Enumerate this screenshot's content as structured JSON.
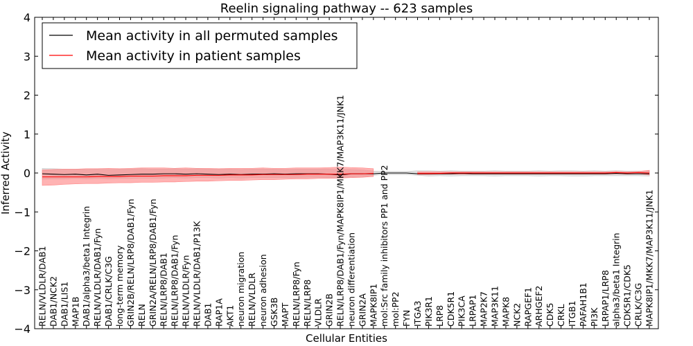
{
  "chart_data": {
    "type": "line",
    "title": "Reelin signaling pathway -- 623 samples",
    "xlabel": "Cellular Entities",
    "ylabel": "Inferred Activity",
    "ylim": [
      -4,
      4
    ],
    "yticks": [
      -4,
      -3,
      -2,
      -1,
      0,
      1,
      2,
      3,
      4
    ],
    "ytick_labels": [
      "−4",
      "−3",
      "−2",
      "−1",
      "0",
      "1",
      "2",
      "3",
      "4"
    ],
    "legend_position": "top-left",
    "categories": [
      "RELN/VLDLR/DAB1",
      "DAB1/NCK2",
      "DAB1/LIS1",
      "MAP1B",
      "DAB1/alpha3/beta1 Integrin",
      "RELN/VLDLR/DAB1/Fyn",
      "DAB1/CRLK/C3G",
      "long-term memory",
      "GRIN2B/RELN/LRP8/DAB1/Fyn",
      "RELN",
      "GRIN2A/RELN/LRP8/DAB1/Fyn",
      "RELN/LRP8/DAB1",
      "RELN/LRP8/DAB1/Fyn",
      "RELN/VLDLR/Fyn",
      "RELN/VLDLR/DAB1/P13K",
      "DAB1",
      "RAP1A",
      "AKT1",
      "neuron migration",
      "RELN/VLDLR",
      "neuron adhesion",
      "GSK3B",
      "MAPT",
      "RELN/LRP8/Fyn",
      "RELN/LRP8",
      "VLDLR",
      "GRIN2B",
      "RELN/LRP8/DAB1/Fyn/MAPK8IP1/MKK7/MAP3K11/JNK1",
      "neuron differentiation",
      "GRIN2A",
      "MAPK8IP1",
      "mol:Src family inhibitors PP1 and PP2",
      "mol:PP2",
      "FYN",
      "ITGA3",
      "PIK3R1",
      "LRP8",
      "CDK5R1",
      "PIK3CA",
      "LRPAP1",
      "MAP2K7",
      "MAP3K11",
      "MAPK8",
      "NCK2",
      "RAPGEF1",
      "ARHGEF2",
      "CDK5",
      "CRKL",
      "ITGB1",
      "PAFAH1B1",
      "PI3K",
      "LRPAP1/LRP8",
      "alpha3/beta1 Integrin",
      "CDK5R1/CDK5",
      "CRLK/C3G",
      "MAPK8IP1/MKK7/MAP3K11/JNK1"
    ],
    "series": [
      {
        "name": "Mean activity in all permuted samples",
        "color": "#000000",
        "band_color": "#c8c8c8",
        "values": [
          -0.02,
          -0.03,
          -0.04,
          -0.03,
          -0.05,
          -0.03,
          -0.06,
          -0.05,
          -0.04,
          -0.03,
          -0.03,
          -0.02,
          -0.02,
          -0.03,
          -0.02,
          -0.03,
          -0.04,
          -0.03,
          -0.04,
          -0.03,
          -0.03,
          -0.02,
          -0.03,
          -0.02,
          -0.02,
          -0.02,
          -0.03,
          -0.05,
          -0.02,
          -0.02,
          -0.02,
          0.0,
          0.0,
          0.0,
          -0.02,
          -0.02,
          -0.02,
          -0.02,
          -0.01,
          -0.02,
          -0.02,
          -0.02,
          -0.02,
          -0.02,
          -0.02,
          -0.02,
          -0.02,
          -0.02,
          -0.02,
          -0.02,
          -0.02,
          -0.02,
          -0.01,
          -0.02,
          -0.02,
          -0.02
        ],
        "band_low": [
          -0.16,
          -0.15,
          -0.15,
          -0.14,
          -0.15,
          -0.14,
          -0.15,
          -0.14,
          -0.14,
          -0.13,
          -0.13,
          -0.13,
          -0.12,
          -0.13,
          -0.12,
          -0.12,
          -0.13,
          -0.12,
          -0.13,
          -0.12,
          -0.12,
          -0.12,
          -0.12,
          -0.12,
          -0.11,
          -0.11,
          -0.12,
          -0.13,
          -0.1,
          -0.09,
          -0.06,
          -0.04,
          -0.04,
          -0.04,
          -0.06,
          -0.08,
          -0.07,
          -0.08,
          -0.07,
          -0.07,
          -0.07,
          -0.08,
          -0.07,
          -0.07,
          -0.07,
          -0.08,
          -0.07,
          -0.07,
          -0.08,
          -0.08,
          -0.07,
          -0.07,
          -0.07,
          -0.07,
          -0.07,
          -0.08
        ],
        "band_high": [
          0.12,
          0.11,
          0.1,
          0.1,
          0.09,
          0.1,
          0.09,
          0.1,
          0.1,
          0.11,
          0.1,
          0.1,
          0.11,
          0.1,
          0.11,
          0.1,
          0.1,
          0.1,
          0.09,
          0.1,
          0.1,
          0.1,
          0.09,
          0.1,
          0.1,
          0.1,
          0.1,
          0.09,
          0.09,
          0.08,
          0.05,
          0.04,
          0.04,
          0.04,
          0.06,
          0.06,
          0.05,
          0.06,
          0.05,
          0.05,
          0.05,
          0.06,
          0.05,
          0.05,
          0.05,
          0.06,
          0.05,
          0.06,
          0.06,
          0.05,
          0.06,
          0.05,
          0.06,
          0.05,
          0.05,
          0.05
        ]
      },
      {
        "name": "Mean activity in patient samples",
        "color": "#ff0000",
        "band_color": "#ff8080",
        "values": [
          -0.1,
          -0.1,
          -0.1,
          -0.1,
          -0.1,
          -0.09,
          -0.09,
          -0.09,
          -0.08,
          -0.08,
          -0.08,
          -0.07,
          -0.07,
          -0.07,
          -0.06,
          -0.06,
          -0.06,
          -0.05,
          -0.05,
          -0.05,
          -0.04,
          -0.04,
          -0.04,
          -0.04,
          -0.03,
          -0.03,
          -0.03,
          -0.03,
          -0.02,
          -0.02,
          -0.01,
          null,
          null,
          null,
          -0.01,
          -0.01,
          -0.01,
          0.0,
          0.0,
          0.0,
          0.0,
          0.0,
          0.0,
          0.0,
          0.0,
          0.0,
          0.0,
          0.0,
          0.0,
          0.0,
          0.0,
          0.0,
          0.01,
          0.0,
          0.01,
          0.0
        ],
        "band_low": [
          -0.32,
          -0.31,
          -0.29,
          -0.28,
          -0.27,
          -0.27,
          -0.26,
          -0.25,
          -0.25,
          -0.24,
          -0.24,
          -0.23,
          -0.23,
          -0.22,
          -0.21,
          -0.21,
          -0.2,
          -0.19,
          -0.19,
          -0.18,
          -0.17,
          -0.17,
          -0.16,
          -0.15,
          -0.15,
          -0.14,
          -0.14,
          -0.13,
          -0.12,
          -0.11,
          -0.09,
          null,
          null,
          null,
          -0.04,
          -0.04,
          -0.03,
          -0.03,
          -0.03,
          -0.03,
          -0.03,
          -0.03,
          -0.03,
          -0.03,
          -0.03,
          -0.03,
          -0.03,
          -0.03,
          -0.03,
          -0.03,
          -0.03,
          -0.03,
          -0.02,
          -0.03,
          -0.02,
          -0.05
        ],
        "band_high": [
          0.08,
          0.09,
          0.1,
          0.1,
          0.11,
          0.11,
          0.12,
          0.11,
          0.12,
          0.13,
          0.13,
          0.13,
          0.12,
          0.13,
          0.12,
          0.12,
          0.11,
          0.12,
          0.12,
          0.12,
          0.13,
          0.12,
          0.12,
          0.13,
          0.13,
          0.13,
          0.14,
          0.15,
          0.14,
          0.13,
          0.11,
          null,
          null,
          null,
          0.03,
          0.03,
          0.03,
          0.03,
          0.03,
          0.03,
          0.03,
          0.03,
          0.03,
          0.03,
          0.03,
          0.03,
          0.03,
          0.03,
          0.03,
          0.03,
          0.03,
          0.03,
          0.04,
          0.03,
          0.04,
          0.07
        ]
      }
    ]
  }
}
